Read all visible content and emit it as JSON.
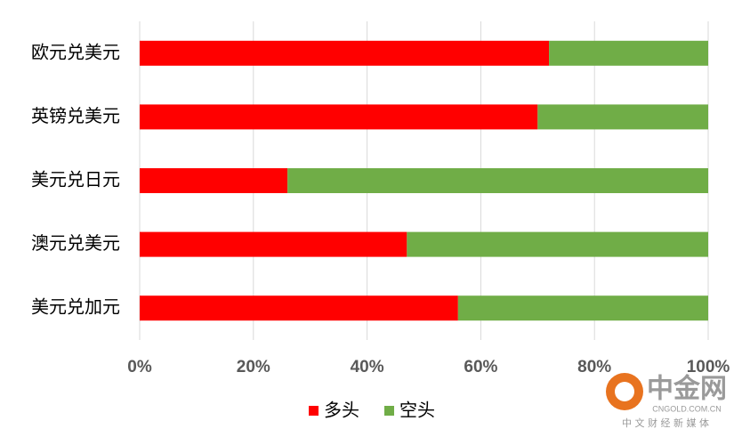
{
  "chart_data": {
    "type": "stacked-bar-horizontal",
    "categories": [
      "欧元兑美元",
      "英镑兑美元",
      "美元兑日元",
      "澳元兑美元",
      "美元兑加元"
    ],
    "series": [
      {
        "name": "多头",
        "color": "#ff0000",
        "values": [
          72,
          70,
          26,
          47,
          56
        ]
      },
      {
        "name": "空头",
        "color": "#70ad47",
        "values": [
          28,
          30,
          74,
          53,
          44
        ]
      }
    ],
    "xlim": [
      0,
      100
    ],
    "xticks": [
      {
        "value": 0,
        "label": "0%"
      },
      {
        "value": 20,
        "label": "20%"
      },
      {
        "value": 40,
        "label": "40%"
      },
      {
        "value": 60,
        "label": "60%"
      },
      {
        "value": 80,
        "label": "80%"
      },
      {
        "value": 100,
        "label": "100%"
      }
    ],
    "grid": true,
    "legend": "bottom"
  },
  "watermark": {
    "name": "中金网",
    "url": "CNGOLD.COM.CN",
    "tagline": "中 文 财 经 新 媒 体"
  }
}
